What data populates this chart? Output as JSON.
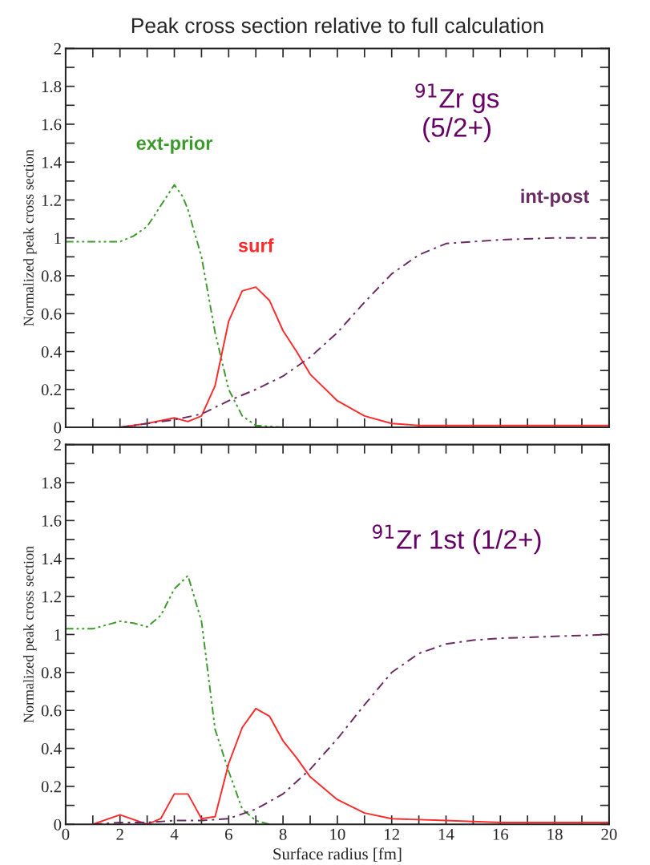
{
  "chart_data": [
    {
      "type": "line",
      "title": "Peak cross section relative to full calculation",
      "ylabel": "Normalized peak cross section",
      "annotations": [
        "$^{91}$Zr gs\n(5/2+)"
      ],
      "xlim": [
        0,
        20
      ],
      "ylim": [
        0,
        2
      ],
      "xticks": [
        0,
        {
          "value": 1,
          "label": null
        },
        2,
        {
          "value": 3,
          "label": null
        },
        4,
        {
          "value": 5,
          "label": null
        },
        6,
        {
          "value": 7,
          "label": null
        },
        8,
        {
          "value": 9,
          "label": null
        },
        10,
        {
          "value": 11,
          "label": null
        },
        12,
        {
          "value": 13,
          "label": null
        },
        14,
        {
          "value": 15,
          "label": null
        },
        16,
        {
          "value": 17,
          "label": null
        },
        18,
        {
          "value": 19,
          "label": null
        },
        20
      ],
      "yticks": [
        0,
        {
          "value": 0.1,
          "label": null
        },
        0.2,
        {
          "value": 0.3,
          "label": null
        },
        0.4,
        {
          "value": 0.5,
          "label": null
        },
        0.6,
        {
          "value": 0.7,
          "label": null
        },
        0.8,
        {
          "value": 0.9,
          "label": null
        },
        1,
        {
          "value": 1.1,
          "label": null
        },
        1.2,
        {
          "value": 1.3,
          "label": null
        },
        1.4,
        {
          "value": 1.5,
          "label": null
        },
        1.6,
        {
          "value": 1.7,
          "label": null
        },
        1.8,
        {
          "value": 1.9,
          "label": null
        },
        2
      ],
      "tick_labels": "y",
      "grid": false,
      "legend": false,
      "series": [
        {
          "name": "ext-prior",
          "color": "#3a9a2a",
          "line_style": "dashdot",
          "x": [
            0,
            1,
            2,
            2.5,
            3,
            3.5,
            4,
            4.3,
            4.5,
            5,
            5.5,
            6,
            6.5,
            7,
            8,
            9
          ],
          "values": [
            0.98,
            0.98,
            0.98,
            1.01,
            1.06,
            1.17,
            1.28,
            1.22,
            1.15,
            0.9,
            0.5,
            0.2,
            0.06,
            0.01,
            0,
            0
          ]
        },
        {
          "name": "surf",
          "color": "#ff2a2a",
          "line_style": "solid",
          "x": [
            1,
            2,
            3,
            4,
            4.5,
            5,
            5.5,
            6,
            6.5,
            7,
            7.5,
            8,
            8.5,
            9,
            10,
            11,
            12,
            13,
            14,
            16,
            18,
            20
          ],
          "values": [
            0,
            0,
            0.02,
            0.05,
            0.03,
            0.06,
            0.22,
            0.56,
            0.72,
            0.74,
            0.67,
            0.51,
            0.4,
            0.28,
            0.14,
            0.06,
            0.02,
            0.01,
            0.01,
            0.01,
            0.01,
            0.01
          ]
        },
        {
          "name": "int-post",
          "color": "#6a2a62",
          "line_style": "dashed",
          "x": [
            2,
            3,
            4,
            5,
            6,
            7,
            8,
            9,
            10,
            11,
            12,
            13,
            14,
            15,
            16,
            18,
            20
          ],
          "values": [
            0,
            0.02,
            0.04,
            0.07,
            0.14,
            0.2,
            0.27,
            0.37,
            0.5,
            0.66,
            0.81,
            0.91,
            0.97,
            0.98,
            0.99,
            1.0,
            1.0
          ]
        }
      ]
    },
    {
      "type": "line",
      "xlabel": "Surface radius [fm]",
      "ylabel": "Normalized peak cross section",
      "annotations": [
        "$^{91}$Zr 1st (1/2+)"
      ],
      "xlim": [
        0,
        20
      ],
      "ylim": [
        0,
        2
      ],
      "xticks": [
        0,
        {
          "value": 1,
          "label": null
        },
        2,
        {
          "value": 3,
          "label": null
        },
        4,
        {
          "value": 5,
          "label": null
        },
        6,
        {
          "value": 7,
          "label": null
        },
        8,
        {
          "value": 9,
          "label": null
        },
        10,
        {
          "value": 11,
          "label": null
        },
        12,
        {
          "value": 13,
          "label": null
        },
        14,
        {
          "value": 15,
          "label": null
        },
        16,
        {
          "value": 17,
          "label": null
        },
        18,
        {
          "value": 19,
          "label": null
        },
        20
      ],
      "yticks": [
        0,
        {
          "value": 0.1,
          "label": null
        },
        0.2,
        {
          "value": 0.3,
          "label": null
        },
        0.4,
        {
          "value": 0.5,
          "label": null
        },
        0.6,
        {
          "value": 0.7,
          "label": null
        },
        0.8,
        {
          "value": 0.9,
          "label": null
        },
        1,
        {
          "value": 1.1,
          "label": null
        },
        1.2,
        {
          "value": 1.3,
          "label": null
        },
        1.4,
        {
          "value": 1.5,
          "label": null
        },
        1.6,
        {
          "value": 1.7,
          "label": null
        },
        1.8,
        {
          "value": 1.9,
          "label": null
        },
        2
      ],
      "grid": false,
      "legend": false,
      "series": [
        {
          "color": "#3a9a2a",
          "line_style": "dashdot",
          "x": [
            0,
            1,
            2,
            2.5,
            3,
            3.5,
            4,
            4.5,
            5,
            5.5,
            6,
            6.5,
            7,
            7.5
          ],
          "values": [
            1.03,
            1.03,
            1.07,
            1.06,
            1.04,
            1.1,
            1.24,
            1.31,
            1.07,
            0.5,
            0.28,
            0.08,
            0.02,
            0
          ]
        },
        {
          "color": "#ff2a2a",
          "line_style": "solid",
          "x": [
            1,
            2,
            3,
            3.5,
            4,
            4.5,
            5,
            5.5,
            6,
            6.5,
            7,
            7.5,
            8,
            8.5,
            9,
            10,
            11,
            12,
            14,
            16,
            18,
            20
          ],
          "values": [
            0,
            0.05,
            0,
            0.03,
            0.16,
            0.16,
            0.03,
            0.04,
            0.32,
            0.51,
            0.61,
            0.57,
            0.44,
            0.35,
            0.25,
            0.13,
            0.06,
            0.03,
            0.02,
            0.01,
            0.01,
            0.01
          ]
        },
        {
          "color": "#6a2a62",
          "line_style": "dashed",
          "x": [
            1,
            2,
            3,
            4,
            5,
            6,
            7,
            8,
            9,
            10,
            11,
            12,
            13,
            14,
            15,
            16,
            18,
            20
          ],
          "values": [
            0,
            0.01,
            0.01,
            0.02,
            0.02,
            0.03,
            0.08,
            0.16,
            0.29,
            0.45,
            0.63,
            0.8,
            0.9,
            0.95,
            0.97,
            0.98,
            0.99,
            1.0
          ]
        }
      ]
    }
  ]
}
